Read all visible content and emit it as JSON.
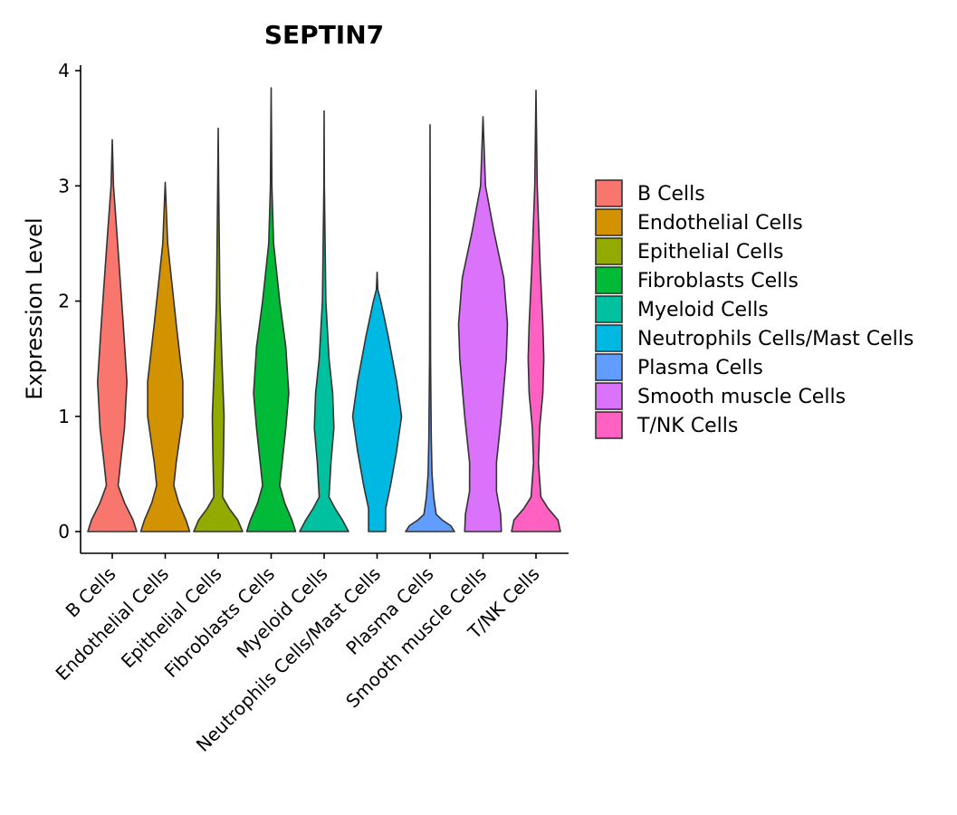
{
  "chart_data": {
    "type": "violin",
    "title": "SEPTIN7",
    "xlabel": "",
    "ylabel": "Expression Level",
    "ylim": [
      0,
      4
    ],
    "yticks": [
      0,
      1,
      2,
      3,
      4
    ],
    "legend_position": "right",
    "categories": [
      "B Cells",
      "Endothelial Cells",
      "Epithelial Cells",
      "Fibroblasts Cells",
      "Myeloid Cells",
      "Neutrophils Cells/Mast Cells",
      "Plasma Cells",
      "Smooth muscle Cells",
      "T/NK Cells"
    ],
    "colors": [
      "#F8766D",
      "#D39200",
      "#93AA00",
      "#00BA38",
      "#00C19F",
      "#00B9E3",
      "#619CFF",
      "#DB72FB",
      "#FF61C3"
    ],
    "max_values": [
      3.4,
      3.03,
      3.5,
      3.85,
      3.65,
      2.25,
      3.53,
      3.6,
      3.83
    ],
    "density_profiles": [
      [
        [
          0,
          1.0
        ],
        [
          0.1,
          0.85
        ],
        [
          0.25,
          0.5
        ],
        [
          0.4,
          0.24
        ],
        [
          0.6,
          0.34
        ],
        [
          0.9,
          0.5
        ],
        [
          1.3,
          0.6
        ],
        [
          1.8,
          0.45
        ],
        [
          2.5,
          0.22
        ],
        [
          3.0,
          0.05
        ],
        [
          3.4,
          0.0
        ]
      ],
      [
        [
          0,
          1.0
        ],
        [
          0.1,
          0.85
        ],
        [
          0.25,
          0.55
        ],
        [
          0.4,
          0.35
        ],
        [
          0.6,
          0.45
        ],
        [
          1.0,
          0.72
        ],
        [
          1.3,
          0.72
        ],
        [
          1.8,
          0.45
        ],
        [
          2.5,
          0.1
        ],
        [
          3.03,
          0.0
        ]
      ],
      [
        [
          0,
          1.0
        ],
        [
          0.1,
          0.8
        ],
        [
          0.2,
          0.45
        ],
        [
          0.3,
          0.18
        ],
        [
          0.7,
          0.22
        ],
        [
          1.0,
          0.24
        ],
        [
          1.5,
          0.15
        ],
        [
          2.0,
          0.07
        ],
        [
          3.0,
          0.02
        ],
        [
          3.5,
          0.0
        ]
      ],
      [
        [
          0,
          1.0
        ],
        [
          0.1,
          0.85
        ],
        [
          0.25,
          0.55
        ],
        [
          0.4,
          0.35
        ],
        [
          0.6,
          0.45
        ],
        [
          0.9,
          0.6
        ],
        [
          1.2,
          0.72
        ],
        [
          1.6,
          0.6
        ],
        [
          2.0,
          0.35
        ],
        [
          2.5,
          0.1
        ],
        [
          3.0,
          0.03
        ],
        [
          3.85,
          0.0
        ]
      ],
      [
        [
          0,
          1.0
        ],
        [
          0.1,
          0.75
        ],
        [
          0.2,
          0.45
        ],
        [
          0.3,
          0.2
        ],
        [
          0.6,
          0.28
        ],
        [
          0.9,
          0.4
        ],
        [
          1.2,
          0.35
        ],
        [
          1.5,
          0.2
        ],
        [
          2.0,
          0.07
        ],
        [
          3.0,
          0.01
        ],
        [
          3.65,
          0.0
        ]
      ],
      [
        [
          0,
          0.35
        ],
        [
          0.2,
          0.35
        ],
        [
          0.4,
          0.55
        ],
        [
          0.7,
          0.8
        ],
        [
          1.0,
          1.0
        ],
        [
          1.3,
          0.8
        ],
        [
          1.7,
          0.45
        ],
        [
          2.0,
          0.15
        ],
        [
          2.1,
          0.03
        ],
        [
          2.25,
          0.0
        ]
      ],
      [
        [
          0,
          1.0
        ],
        [
          0.05,
          0.85
        ],
        [
          0.1,
          0.5
        ],
        [
          0.15,
          0.25
        ],
        [
          0.3,
          0.15
        ],
        [
          0.5,
          0.08
        ],
        [
          0.8,
          0.05
        ],
        [
          1.5,
          0.02
        ],
        [
          3.53,
          0.0
        ]
      ],
      [
        [
          0,
          0.75
        ],
        [
          0.15,
          0.72
        ],
        [
          0.35,
          0.55
        ],
        [
          0.6,
          0.55
        ],
        [
          1.0,
          0.75
        ],
        [
          1.5,
          0.95
        ],
        [
          1.8,
          1.0
        ],
        [
          2.2,
          0.85
        ],
        [
          2.6,
          0.45
        ],
        [
          3.0,
          0.1
        ],
        [
          3.6,
          0.0
        ]
      ],
      [
        [
          0,
          1.0
        ],
        [
          0.1,
          0.9
        ],
        [
          0.2,
          0.5
        ],
        [
          0.3,
          0.2
        ],
        [
          0.6,
          0.1
        ],
        [
          0.9,
          0.15
        ],
        [
          1.2,
          0.28
        ],
        [
          1.5,
          0.32
        ],
        [
          1.8,
          0.28
        ],
        [
          2.3,
          0.17
        ],
        [
          3.0,
          0.05
        ],
        [
          3.83,
          0.0
        ]
      ]
    ]
  }
}
